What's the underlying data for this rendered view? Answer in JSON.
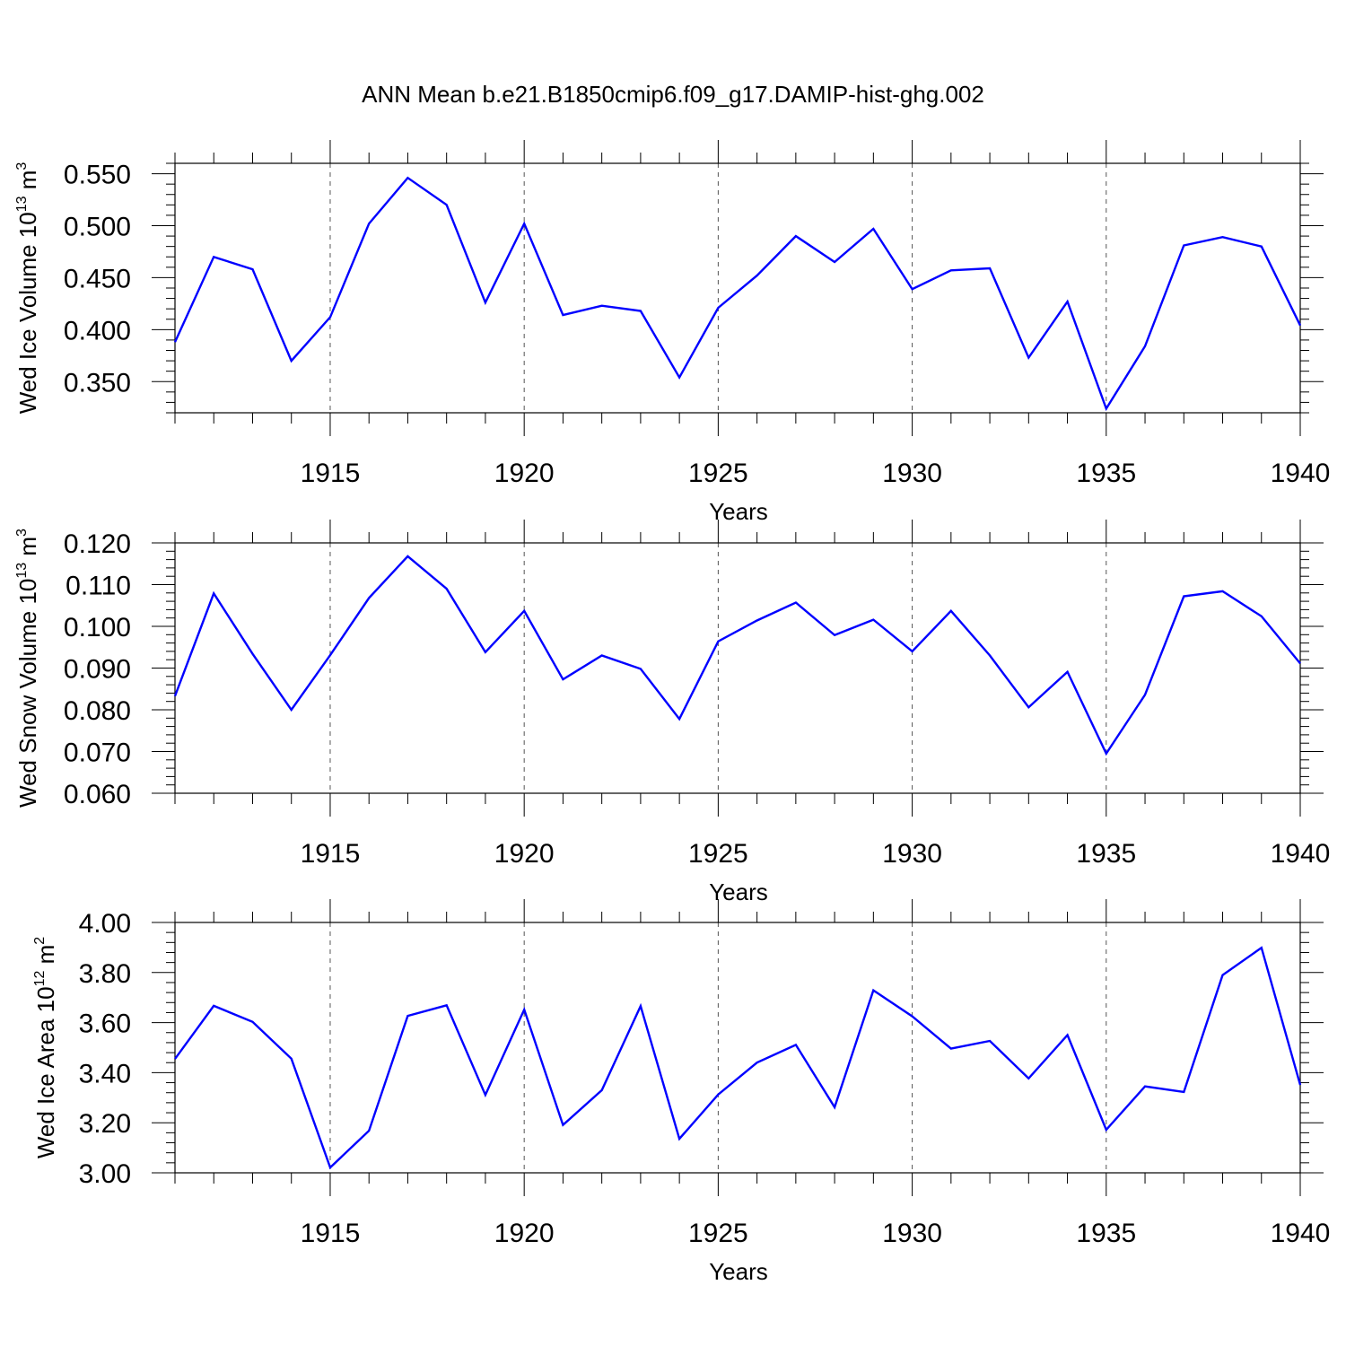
{
  "title": "ANN Mean b.e21.B1850cmip6.f09_g17.DAMIP-hist-ghg.002",
  "colors": {
    "line": "#0000ff",
    "axes": "#000000",
    "grid": "#555555"
  },
  "chart_data": [
    {
      "type": "line",
      "ylabel": "Wed Ice Volume 10",
      "ylabel_exp": "13",
      "ylabel_unit": " m",
      "ylabel_unit_exp": "3",
      "xlabel": "Years",
      "xlim": [
        1911,
        1940
      ],
      "ylim": [
        0.32,
        0.56
      ],
      "yticks": [
        0.35,
        0.4,
        0.45,
        0.5,
        0.55
      ],
      "ytick_labels": [
        "0.350",
        "0.400",
        "0.450",
        "0.500",
        "0.550"
      ],
      "xticks": [
        1915,
        1920,
        1925,
        1930,
        1935,
        1940
      ],
      "xtick_labels": [
        "1915",
        "1920",
        "1925",
        "1930",
        "1935",
        "1940"
      ],
      "grid": "vertical dashed at major x ticks",
      "x": [
        1911,
        1912,
        1913,
        1914,
        1915,
        1916,
        1917,
        1918,
        1919,
        1920,
        1921,
        1922,
        1923,
        1924,
        1925,
        1926,
        1927,
        1928,
        1929,
        1930,
        1931,
        1932,
        1933,
        1934,
        1935,
        1936,
        1937,
        1938,
        1939,
        1940
      ],
      "values": [
        0.388,
        0.47,
        0.458,
        0.37,
        0.412,
        0.502,
        0.546,
        0.52,
        0.426,
        0.502,
        0.414,
        0.423,
        0.418,
        0.354,
        0.421,
        0.452,
        0.49,
        0.465,
        0.497,
        0.439,
        0.457,
        0.459,
        0.373,
        0.427,
        0.324,
        0.384,
        0.481,
        0.489,
        0.48,
        0.404
      ]
    },
    {
      "type": "line",
      "ylabel": "Wed Snow Volume 10",
      "ylabel_exp": "13",
      "ylabel_unit": " m",
      "ylabel_unit_exp": "3",
      "xlabel": "Years",
      "xlim": [
        1911,
        1940
      ],
      "ylim": [
        0.06,
        0.12
      ],
      "yticks": [
        0.06,
        0.07,
        0.08,
        0.09,
        0.1,
        0.11,
        0.12
      ],
      "ytick_labels": [
        "0.060",
        "0.070",
        "0.080",
        "0.090",
        "0.100",
        "0.110",
        "0.120"
      ],
      "xticks": [
        1915,
        1920,
        1925,
        1930,
        1935,
        1940
      ],
      "xtick_labels": [
        "1915",
        "1920",
        "1925",
        "1930",
        "1935",
        "1940"
      ],
      "grid": "vertical dashed at major x ticks",
      "x": [
        1911,
        1912,
        1913,
        1914,
        1915,
        1916,
        1917,
        1918,
        1919,
        1920,
        1921,
        1922,
        1923,
        1924,
        1925,
        1926,
        1927,
        1928,
        1929,
        1930,
        1931,
        1932,
        1933,
        1934,
        1935,
        1936,
        1937,
        1938,
        1939,
        1940
      ],
      "values": [
        0.0833,
        0.1079,
        0.0934,
        0.08,
        0.0931,
        0.1068,
        0.1168,
        0.109,
        0.0938,
        0.1037,
        0.0873,
        0.093,
        0.0898,
        0.0778,
        0.0964,
        0.1014,
        0.1057,
        0.0979,
        0.1016,
        0.094,
        0.1037,
        0.093,
        0.0806,
        0.0891,
        0.0695,
        0.0836,
        0.1072,
        0.1084,
        0.1024,
        0.0911
      ]
    },
    {
      "type": "line",
      "ylabel": "Wed Ice Area 10",
      "ylabel_exp": "12",
      "ylabel_unit": " m",
      "ylabel_unit_exp": "2",
      "xlabel": "Years",
      "xlim": [
        1911,
        1940
      ],
      "ylim": [
        3.0,
        4.0
      ],
      "yticks": [
        3.0,
        3.2,
        3.4,
        3.6,
        3.8,
        4.0
      ],
      "ytick_labels": [
        "3.00",
        "3.20",
        "3.40",
        "3.60",
        "3.80",
        "4.00"
      ],
      "xticks": [
        1915,
        1920,
        1925,
        1930,
        1935,
        1940
      ],
      "xtick_labels": [
        "1915",
        "1920",
        "1925",
        "1930",
        "1935",
        "1940"
      ],
      "grid": "vertical dashed at major x ticks",
      "x": [
        1911,
        1912,
        1913,
        1914,
        1915,
        1916,
        1917,
        1918,
        1919,
        1920,
        1921,
        1922,
        1923,
        1924,
        1925,
        1926,
        1927,
        1928,
        1929,
        1930,
        1931,
        1932,
        1933,
        1934,
        1935,
        1936,
        1937,
        1938,
        1939,
        1940
      ],
      "values": [
        3.455,
        3.667,
        3.603,
        3.456,
        3.021,
        3.168,
        3.627,
        3.669,
        3.311,
        3.652,
        3.191,
        3.33,
        3.666,
        3.136,
        3.313,
        3.44,
        3.511,
        3.262,
        3.729,
        3.625,
        3.496,
        3.527,
        3.377,
        3.55,
        3.172,
        3.345,
        3.323,
        3.79,
        3.899,
        3.351
      ]
    }
  ]
}
